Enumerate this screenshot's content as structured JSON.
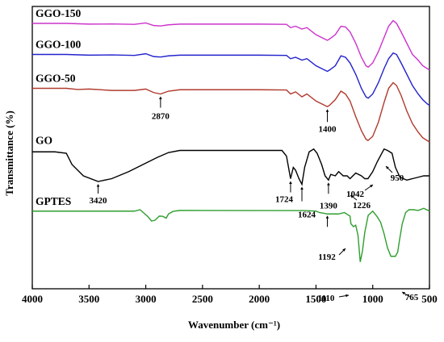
{
  "chart_data": {
    "type": "line",
    "xlabel": "Wavenumber (cm⁻¹)",
    "ylabel": "Transmittance (%)",
    "xlim": [
      4000,
      500
    ],
    "x_inverted": true,
    "x_ticks": [
      4000,
      3500,
      3000,
      2500,
      2000,
      1500,
      1000,
      500
    ],
    "grid": false,
    "legend": "labels-above-each-curve",
    "series": [
      {
        "name": "GGO-150",
        "color": "#cc33cc",
        "points": [
          [
            4000,
            88
          ],
          [
            3700,
            88
          ],
          [
            3500,
            87.5
          ],
          [
            3300,
            87.6
          ],
          [
            3100,
            87.3
          ],
          [
            3000,
            88.3
          ],
          [
            2930,
            86.5
          ],
          [
            2870,
            86.2
          ],
          [
            2800,
            87
          ],
          [
            2700,
            87.5
          ],
          [
            2000,
            87.5
          ],
          [
            1760,
            87.3
          ],
          [
            1724,
            85
          ],
          [
            1680,
            86
          ],
          [
            1624,
            84
          ],
          [
            1580,
            85
          ],
          [
            1500,
            80
          ],
          [
            1450,
            78
          ],
          [
            1400,
            76
          ],
          [
            1380,
            77
          ],
          [
            1330,
            80
          ],
          [
            1280,
            86
          ],
          [
            1240,
            85.5
          ],
          [
            1200,
            82
          ],
          [
            1150,
            74
          ],
          [
            1100,
            64
          ],
          [
            1060,
            58
          ],
          [
            1040,
            57
          ],
          [
            1000,
            60
          ],
          [
            950,
            68
          ],
          [
            900,
            78
          ],
          [
            860,
            86
          ],
          [
            820,
            90
          ],
          [
            790,
            88
          ],
          [
            750,
            82
          ],
          [
            700,
            74
          ],
          [
            650,
            66
          ],
          [
            600,
            62
          ],
          [
            560,
            58
          ],
          [
            520,
            56
          ],
          [
            500,
            55
          ]
        ]
      },
      {
        "name": "GGO-100",
        "color": "#2222cc",
        "points": [
          [
            4000,
            66
          ],
          [
            3700,
            66
          ],
          [
            3500,
            65.5
          ],
          [
            3300,
            65.7
          ],
          [
            3100,
            65.3
          ],
          [
            3000,
            66.5
          ],
          [
            2930,
            64.5
          ],
          [
            2870,
            64.2
          ],
          [
            2800,
            65
          ],
          [
            2700,
            65.5
          ],
          [
            2000,
            65.5
          ],
          [
            1760,
            65.3
          ],
          [
            1724,
            63
          ],
          [
            1680,
            64
          ],
          [
            1624,
            62
          ],
          [
            1580,
            63
          ],
          [
            1500,
            58
          ],
          [
            1450,
            56
          ],
          [
            1400,
            54
          ],
          [
            1380,
            55
          ],
          [
            1330,
            58
          ],
          [
            1280,
            65
          ],
          [
            1240,
            64
          ],
          [
            1200,
            60
          ],
          [
            1150,
            52
          ],
          [
            1100,
            42
          ],
          [
            1060,
            36
          ],
          [
            1040,
            35
          ],
          [
            1000,
            38
          ],
          [
            950,
            46
          ],
          [
            900,
            56
          ],
          [
            860,
            63
          ],
          [
            820,
            67
          ],
          [
            790,
            66
          ],
          [
            750,
            60
          ],
          [
            700,
            52
          ],
          [
            650,
            44
          ],
          [
            600,
            38
          ],
          [
            560,
            34
          ],
          [
            520,
            31
          ],
          [
            500,
            30
          ]
        ]
      },
      {
        "name": "GGO-50",
        "color": "#b03a2e",
        "points": [
          [
            4000,
            42
          ],
          [
            3700,
            42
          ],
          [
            3600,
            41.2
          ],
          [
            3500,
            41.5
          ],
          [
            3300,
            40.5
          ],
          [
            3100,
            40.5
          ],
          [
            3000,
            41.5
          ],
          [
            2930,
            39
          ],
          [
            2870,
            38
          ],
          [
            2800,
            40
          ],
          [
            2700,
            41
          ],
          [
            2000,
            41
          ],
          [
            1760,
            40.8
          ],
          [
            1724,
            38
          ],
          [
            1680,
            39.5
          ],
          [
            1624,
            36
          ],
          [
            1580,
            38
          ],
          [
            1500,
            33
          ],
          [
            1450,
            31
          ],
          [
            1400,
            29
          ],
          [
            1380,
            30
          ],
          [
            1330,
            34
          ],
          [
            1280,
            40
          ],
          [
            1240,
            38
          ],
          [
            1200,
            33
          ],
          [
            1150,
            22
          ],
          [
            1100,
            12
          ],
          [
            1060,
            6
          ],
          [
            1042,
            5
          ],
          [
            1000,
            8
          ],
          [
            950,
            18
          ],
          [
            900,
            32
          ],
          [
            860,
            42
          ],
          [
            820,
            46
          ],
          [
            790,
            44
          ],
          [
            750,
            37
          ],
          [
            700,
            26
          ],
          [
            650,
            17
          ],
          [
            600,
            11
          ],
          [
            560,
            7
          ],
          [
            520,
            5
          ],
          [
            500,
            4
          ]
        ]
      },
      {
        "name": "GO",
        "color": "#000000",
        "points": [
          [
            4000,
            -3
          ],
          [
            3800,
            -3
          ],
          [
            3700,
            -4
          ],
          [
            3650,
            -12
          ],
          [
            3550,
            -20
          ],
          [
            3420,
            -24
          ],
          [
            3300,
            -22
          ],
          [
            3150,
            -17
          ],
          [
            3000,
            -11
          ],
          [
            2900,
            -7
          ],
          [
            2800,
            -3.5
          ],
          [
            2700,
            -2
          ],
          [
            2000,
            -2
          ],
          [
            1800,
            -2
          ],
          [
            1760,
            -6
          ],
          [
            1724,
            -22
          ],
          [
            1700,
            -14
          ],
          [
            1680,
            -16
          ],
          [
            1650,
            -22
          ],
          [
            1624,
            -26
          ],
          [
            1600,
            -14
          ],
          [
            1560,
            -3
          ],
          [
            1520,
            -1
          ],
          [
            1490,
            -4
          ],
          [
            1450,
            -12
          ],
          [
            1420,
            -20
          ],
          [
            1390,
            -23
          ],
          [
            1370,
            -19
          ],
          [
            1330,
            -20
          ],
          [
            1300,
            -17
          ],
          [
            1260,
            -20
          ],
          [
            1226,
            -20
          ],
          [
            1200,
            -22
          ],
          [
            1150,
            -18
          ],
          [
            1100,
            -20
          ],
          [
            1070,
            -22
          ],
          [
            1042,
            -22
          ],
          [
            1000,
            -17
          ],
          [
            960,
            -10
          ],
          [
            900,
            -1
          ],
          [
            870,
            -2
          ],
          [
            830,
            -4
          ],
          [
            800,
            -14
          ],
          [
            760,
            -21
          ],
          [
            700,
            -23
          ],
          [
            650,
            -22
          ],
          [
            600,
            -21
          ],
          [
            550,
            -20
          ],
          [
            500,
            -20
          ]
        ]
      },
      {
        "name": "GPTES",
        "color": "#2e9e2e",
        "points": [
          [
            4000,
            -45
          ],
          [
            3100,
            -45
          ],
          [
            3050,
            -44
          ],
          [
            2980,
            -49
          ],
          [
            2950,
            -52
          ],
          [
            2920,
            -51.5
          ],
          [
            2880,
            -48.5
          ],
          [
            2850,
            -48.7
          ],
          [
            2820,
            -50
          ],
          [
            2800,
            -47
          ],
          [
            2760,
            -45.2
          ],
          [
            2700,
            -44.5
          ],
          [
            1600,
            -44.6
          ],
          [
            1500,
            -45
          ],
          [
            1470,
            -46
          ],
          [
            1430,
            -46.5
          ],
          [
            1400,
            -47
          ],
          [
            1300,
            -47
          ],
          [
            1250,
            -46
          ],
          [
            1200,
            -48.5
          ],
          [
            1192,
            -54
          ],
          [
            1170,
            -56
          ],
          [
            1150,
            -55
          ],
          [
            1130,
            -62
          ],
          [
            1110,
            -81
          ],
          [
            1090,
            -73
          ],
          [
            1070,
            -60
          ],
          [
            1040,
            -48
          ],
          [
            1000,
            -45
          ],
          [
            960,
            -49
          ],
          [
            930,
            -53
          ],
          [
            900,
            -61
          ],
          [
            870,
            -71
          ],
          [
            840,
            -77
          ],
          [
            800,
            -77
          ],
          [
            780,
            -74
          ],
          [
            765,
            -66
          ],
          [
            740,
            -54
          ],
          [
            710,
            -46
          ],
          [
            680,
            -44
          ],
          [
            640,
            -44
          ],
          [
            600,
            -44.5
          ],
          [
            550,
            -43
          ],
          [
            500,
            -45
          ]
        ]
      }
    ],
    "annotations": [
      {
        "text": "2870",
        "x": 2870
      },
      {
        "text": "1400",
        "x": 1400
      },
      {
        "text": "950",
        "x": 950
      },
      {
        "text": "1042",
        "x": 1042
      },
      {
        "text": "3420",
        "x": 3420
      },
      {
        "text": "1724",
        "x": 1724
      },
      {
        "text": "1624",
        "x": 1624
      },
      {
        "text": "1390",
        "x": 1390
      },
      {
        "text": "1226",
        "x": 1226
      },
      {
        "text": "1192",
        "x": 1192
      },
      {
        "text": "1110",
        "x": 1110
      },
      {
        "text": "765",
        "x": 765
      }
    ]
  }
}
